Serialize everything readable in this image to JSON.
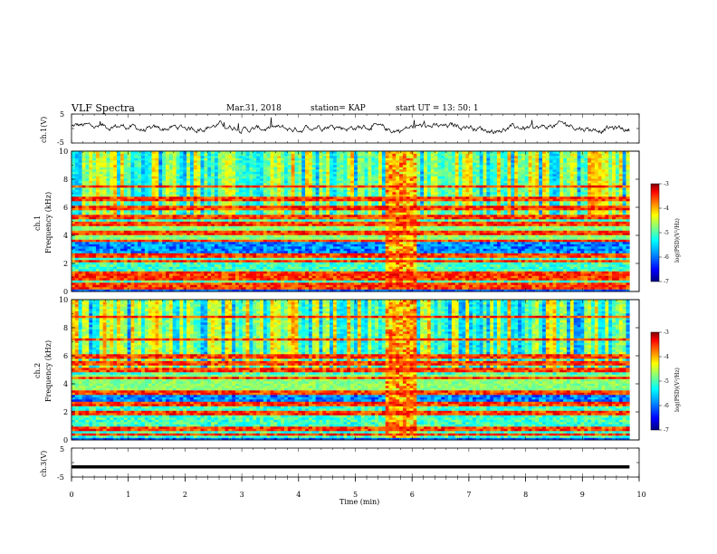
{
  "header": {
    "title": "VLF Spectra",
    "date": "Mar.31, 2018",
    "station": "station= KAP",
    "start": "start  UT =   13: 50: 1"
  },
  "colors": {
    "background": "#ffffff",
    "trace": "#000000",
    "colormap": [
      "#00007f",
      "#0000ff",
      "#00a0ff",
      "#00ffff",
      "#80ff80",
      "#ffff00",
      "#ff8000",
      "#ff0000",
      "#7f0000"
    ]
  },
  "chart_data": [
    {
      "type": "line",
      "panel": "ch1-waveform",
      "ylabel": "ch.1(V)",
      "ylim": [
        -5,
        5
      ],
      "yticks": [
        "5",
        "-5"
      ],
      "xlim": [
        0,
        10
      ],
      "series": [
        {
          "values_description_visible": "",
          "x_range": [
            0,
            9.83
          ],
          "mean": 0.3,
          "amplitude": 1.5
        }
      ]
    },
    {
      "type": "heatmap",
      "panel": "ch1-spectrogram",
      "ylabel": "ch.1",
      "ylabel2": "Frequency  (kHz)",
      "ylim": [
        0,
        10
      ],
      "yticks": [
        "0",
        "2",
        "4",
        "6",
        "8",
        "10"
      ],
      "xlim": [
        0,
        10
      ],
      "data_x_range": [
        0,
        9.83
      ],
      "burst_x": [
        5.55,
        6.1
      ],
      "bands_khz": [
        0.3,
        0.6,
        1.0,
        1.3,
        2.2,
        2.6,
        3.6,
        4.2,
        4.8,
        5.3,
        6.0,
        6.6,
        7.5
      ],
      "colorbar": {
        "label": "log(PSD)(V²/Hz)",
        "ticks": [
          "-3",
          "-4",
          "-5",
          "-6",
          "-7"
        ],
        "range": [
          -7,
          -3
        ]
      }
    },
    {
      "type": "heatmap",
      "panel": "ch2-spectrogram",
      "ylabel": "ch.2",
      "ylabel2": "Frequency  (kHz)",
      "ylim": [
        0,
        10
      ],
      "yticks": [
        "0",
        "2",
        "4",
        "6",
        "8",
        "10"
      ],
      "xlim": [
        0,
        10
      ],
      "data_x_range": [
        0,
        9.83
      ],
      "burst_x": [
        5.55,
        6.1
      ],
      "bands_khz": [
        0.4,
        0.8,
        1.9,
        2.6,
        3.4,
        4.4,
        5.0,
        5.5,
        6.0,
        7.2,
        8.8
      ],
      "colorbar": {
        "label": "log(PSD)(V²/Hz)",
        "ticks": [
          "-3",
          "-4",
          "-5",
          "-6",
          "-7"
        ],
        "range": [
          -7,
          -3
        ]
      }
    },
    {
      "type": "line",
      "panel": "ch3-waveform",
      "ylabel": "ch.3(V)",
      "ylim": [
        -5,
        5
      ],
      "yticks": [
        "5",
        "-5"
      ],
      "xlim": [
        0,
        10
      ],
      "series": [
        {
          "x_range": [
            0,
            9.83
          ],
          "constant": -1.5
        }
      ]
    }
  ],
  "xaxis": {
    "label": "Time  (min)",
    "ticks": [
      "0",
      "1",
      "2",
      "3",
      "4",
      "5",
      "6",
      "7",
      "8",
      "9",
      "10"
    ]
  }
}
